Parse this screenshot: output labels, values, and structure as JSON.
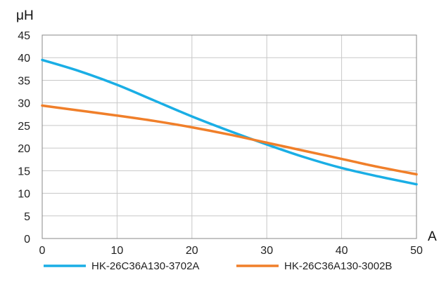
{
  "chart_data": {
    "type": "line",
    "title": "",
    "xlabel": "A",
    "ylabel": "μH",
    "xlim": [
      0,
      50
    ],
    "ylim": [
      0,
      45
    ],
    "xticks": [
      0,
      10,
      20,
      30,
      40,
      50
    ],
    "yticks": [
      0,
      5,
      10,
      15,
      20,
      25,
      30,
      35,
      40,
      45
    ],
    "grid": true,
    "legend_position": "bottom",
    "series": [
      {
        "name": "HK-26C36A130-3702A",
        "color": "#1aaee5",
        "x": [
          0,
          5,
          10,
          15,
          20,
          25,
          30,
          35,
          40,
          45,
          50
        ],
        "y": [
          39.5,
          37.0,
          34.0,
          30.5,
          27.0,
          23.8,
          20.8,
          18.0,
          15.6,
          13.7,
          12.0
        ]
      },
      {
        "name": "HK-26C36A130-3002B",
        "color": "#f07f2a",
        "x": [
          0,
          5,
          10,
          15,
          20,
          25,
          30,
          35,
          40,
          45,
          50
        ],
        "y": [
          29.4,
          28.3,
          27.2,
          26.0,
          24.6,
          23.0,
          21.2,
          19.4,
          17.6,
          15.8,
          14.2
        ]
      }
    ]
  }
}
